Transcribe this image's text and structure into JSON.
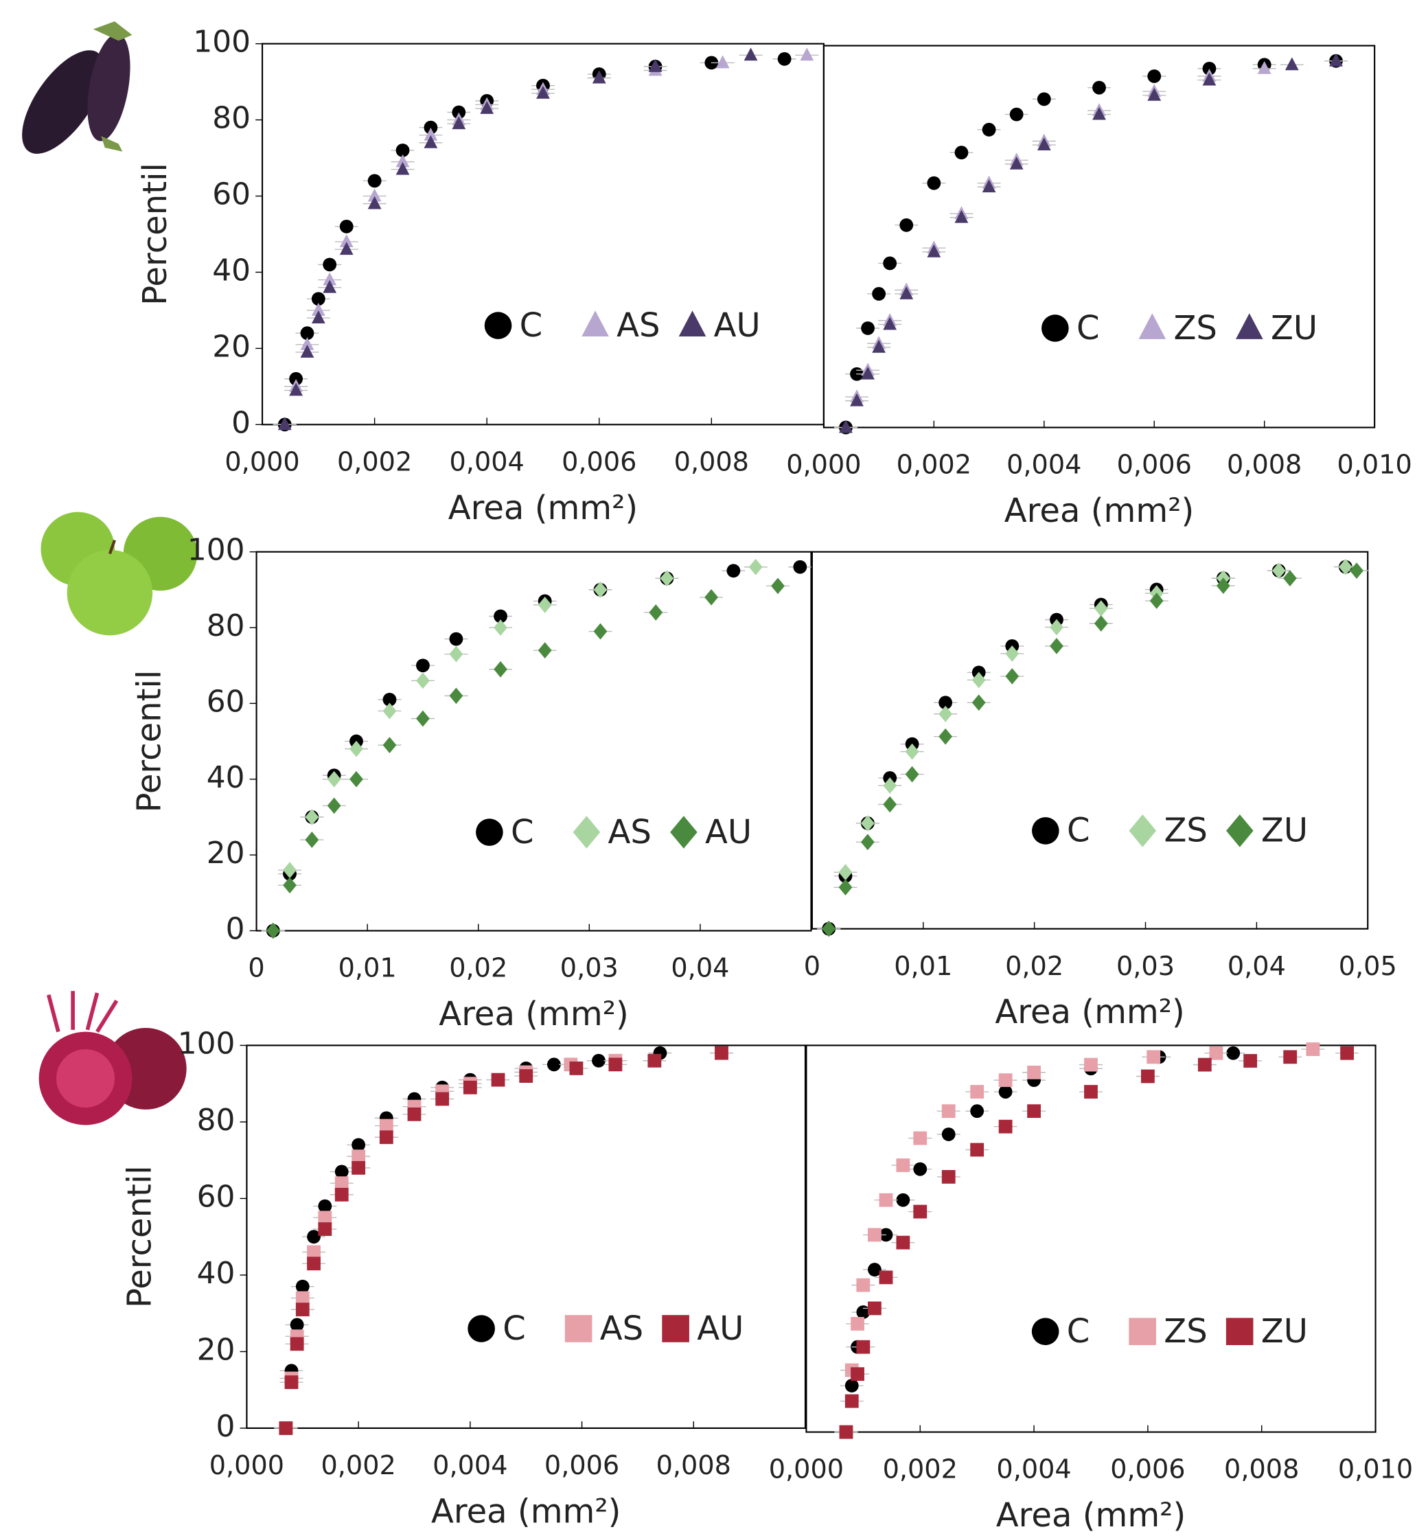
{
  "chart_data": [
    {
      "type": "scatter",
      "x_label": "Area (mm²)",
      "y_label": "Percentil",
      "xlim": [
        0,
        0.01
      ],
      "ylim": [
        0,
        100
      ],
      "xticks": [
        {
          "value": 0,
          "label": "0,000"
        },
        {
          "value": 0.002,
          "label": "0,002"
        },
        {
          "value": 0.004,
          "label": "0,004"
        },
        {
          "value": 0.006,
          "label": "0,006"
        },
        {
          "value": 0.008,
          "label": "0,008"
        }
      ],
      "yticks": [
        0,
        20,
        40,
        60,
        80,
        100
      ],
      "series": [
        {
          "name": "C",
          "color": "#000000",
          "marker": "circle",
          "x": [
            0.0004,
            0.0006,
            0.0008,
            0.001,
            0.0012,
            0.0015,
            0.002,
            0.0025,
            0.003,
            0.0035,
            0.004,
            0.005,
            0.006,
            0.007,
            0.008,
            0.0093
          ],
          "values": [
            0,
            12,
            24,
            33,
            42,
            52,
            64,
            72,
            78,
            82,
            85,
            89,
            92,
            94,
            95,
            96
          ]
        },
        {
          "name": "AS",
          "color": "#b7a6d0",
          "marker": "triangle",
          "x": [
            0.0004,
            0.0006,
            0.0008,
            0.001,
            0.0012,
            0.0015,
            0.002,
            0.0025,
            0.003,
            0.0035,
            0.004,
            0.005,
            0.006,
            0.007,
            0.0082,
            0.0097
          ],
          "values": [
            0,
            10,
            21,
            30,
            38,
            48,
            60,
            69,
            76,
            80,
            84,
            88,
            91,
            93,
            95,
            97
          ]
        },
        {
          "name": "AU",
          "color": "#4a3a6a",
          "marker": "triangle",
          "x": [
            0.0004,
            0.0006,
            0.0008,
            0.001,
            0.0012,
            0.0015,
            0.002,
            0.0025,
            0.003,
            0.0035,
            0.004,
            0.005,
            0.006,
            0.007,
            0.0087
          ],
          "values": [
            0,
            9,
            19,
            28,
            36,
            46,
            58,
            67,
            74,
            79,
            83,
            87,
            91,
            94,
            97
          ]
        }
      ]
    },
    {
      "type": "scatter",
      "x_label": "Area (mm²)",
      "xlim": [
        0,
        0.01
      ],
      "ylim": [
        0,
        100
      ],
      "xticks": [
        {
          "value": 0,
          "label": "0,000"
        },
        {
          "value": 0.002,
          "label": "0,002"
        },
        {
          "value": 0.004,
          "label": "0,004"
        },
        {
          "value": 0.006,
          "label": "0,006"
        },
        {
          "value": 0.008,
          "label": "0,008"
        },
        {
          "value": 0.01,
          "label": "0,010"
        }
      ],
      "series": [
        {
          "name": "C",
          "color": "#000000",
          "marker": "circle",
          "x": [
            0.0004,
            0.0006,
            0.0008,
            0.001,
            0.0012,
            0.0015,
            0.002,
            0.0025,
            0.003,
            0.0035,
            0.004,
            0.005,
            0.006,
            0.007,
            0.008,
            0.0093
          ],
          "values": [
            0,
            14,
            26,
            35,
            43,
            53,
            64,
            72,
            78,
            82,
            86,
            89,
            92,
            94,
            95,
            96
          ]
        },
        {
          "name": "ZS",
          "color": "#b7a6d0",
          "marker": "triangle",
          "x": [
            0.0004,
            0.0006,
            0.0008,
            0.001,
            0.0012,
            0.0015,
            0.002,
            0.0025,
            0.003,
            0.0035,
            0.004,
            0.005,
            0.006,
            0.007,
            0.008,
            0.0093
          ],
          "values": [
            0,
            8,
            15,
            22,
            28,
            36,
            47,
            56,
            64,
            70,
            75,
            83,
            88,
            92,
            94,
            96
          ]
        },
        {
          "name": "ZU",
          "color": "#4a3a6a",
          "marker": "triangle",
          "x": [
            0.0004,
            0.0006,
            0.0008,
            0.001,
            0.0012,
            0.0015,
            0.002,
            0.0025,
            0.003,
            0.0035,
            0.004,
            0.005,
            0.006,
            0.007,
            0.0085,
            0.0093
          ],
          "values": [
            0,
            7,
            14,
            21,
            27,
            35,
            46,
            55,
            63,
            69,
            74,
            82,
            87,
            91,
            95,
            96
          ]
        }
      ]
    },
    {
      "type": "scatter",
      "x_label": "Area (mm²)",
      "y_label": "Percentil",
      "xlim": [
        0,
        0.05
      ],
      "ylim": [
        0,
        100
      ],
      "xticks": [
        0,
        {
          "value": 0.01,
          "label": "0,01"
        },
        {
          "value": 0.02,
          "label": "0,02"
        },
        {
          "value": 0.03,
          "label": "0,03"
        },
        {
          "value": 0.04,
          "label": "0,04"
        }
      ],
      "yticks": [
        0,
        20,
        40,
        60,
        80,
        100
      ],
      "series": [
        {
          "name": "C",
          "color": "#000000",
          "marker": "circle",
          "x": [
            0.0015,
            0.003,
            0.005,
            0.007,
            0.009,
            0.012,
            0.015,
            0.018,
            0.022,
            0.026,
            0.031,
            0.037,
            0.043,
            0.049
          ],
          "values": [
            0,
            15,
            30,
            41,
            50,
            61,
            70,
            77,
            83,
            87,
            90,
            93,
            95,
            96
          ]
        },
        {
          "name": "AS",
          "color": "#a8d5a0",
          "marker": "diamond",
          "x": [
            0.0015,
            0.003,
            0.005,
            0.007,
            0.009,
            0.012,
            0.015,
            0.018,
            0.022,
            0.026,
            0.031,
            0.037,
            0.045
          ],
          "values": [
            0,
            16,
            30,
            40,
            48,
            58,
            66,
            73,
            80,
            86,
            90,
            93,
            96
          ]
        },
        {
          "name": "AU",
          "color": "#4a8a3e",
          "marker": "diamond",
          "x": [
            0.0015,
            0.003,
            0.005,
            0.007,
            0.009,
            0.012,
            0.015,
            0.018,
            0.022,
            0.026,
            0.031,
            0.036,
            0.041,
            0.047
          ],
          "values": [
            0,
            12,
            24,
            33,
            40,
            49,
            56,
            62,
            69,
            74,
            79,
            84,
            88,
            91
          ]
        }
      ]
    },
    {
      "type": "scatter",
      "x_label": "Area (mm²)",
      "xlim": [
        0,
        0.05
      ],
      "ylim": [
        0,
        100
      ],
      "xticks": [
        0,
        {
          "value": 0.01,
          "label": "0,01"
        },
        {
          "value": 0.02,
          "label": "0,02"
        },
        {
          "value": 0.03,
          "label": "0,03"
        },
        {
          "value": 0.04,
          "label": "0,04"
        },
        {
          "value": 0.05,
          "label": "0,05"
        }
      ],
      "series": [
        {
          "name": "C",
          "color": "#000000",
          "marker": "circle",
          "x": [
            0.0015,
            0.003,
            0.005,
            0.007,
            0.009,
            0.012,
            0.015,
            0.018,
            0.022,
            0.026,
            0.031,
            0.037,
            0.042,
            0.048
          ],
          "values": [
            0,
            14,
            28,
            40,
            49,
            60,
            68,
            75,
            82,
            86,
            90,
            93,
            95,
            96
          ]
        },
        {
          "name": "ZS",
          "color": "#a8d5a0",
          "marker": "diamond",
          "x": [
            0.0015,
            0.003,
            0.005,
            0.007,
            0.009,
            0.012,
            0.015,
            0.018,
            0.022,
            0.026,
            0.031,
            0.037,
            0.042,
            0.048
          ],
          "values": [
            0,
            15,
            28,
            38,
            47,
            57,
            66,
            73,
            80,
            85,
            89,
            93,
            95,
            96
          ]
        },
        {
          "name": "ZU",
          "color": "#4a8a3e",
          "marker": "diamond",
          "x": [
            0.0015,
            0.003,
            0.005,
            0.007,
            0.009,
            0.012,
            0.015,
            0.018,
            0.022,
            0.026,
            0.031,
            0.037,
            0.043,
            0.049
          ],
          "values": [
            0,
            11,
            23,
            33,
            41,
            51,
            60,
            67,
            75,
            81,
            87,
            91,
            93,
            95
          ]
        }
      ]
    },
    {
      "type": "scatter",
      "x_label": "Area (mm²)",
      "y_label": "Percentil",
      "xlim": [
        0,
        0.01
      ],
      "ylim": [
        0,
        100
      ],
      "xticks": [
        {
          "value": 0,
          "label": "0,000"
        },
        {
          "value": 0.002,
          "label": "0,002"
        },
        {
          "value": 0.004,
          "label": "0,004"
        },
        {
          "value": 0.006,
          "label": "0,006"
        },
        {
          "value": 0.008,
          "label": "0,008"
        }
      ],
      "yticks": [
        0,
        20,
        40,
        60,
        80,
        100
      ],
      "series": [
        {
          "name": "C",
          "color": "#000000",
          "marker": "circle",
          "x": [
            0.0007,
            0.0008,
            0.0009,
            0.001,
            0.0012,
            0.0014,
            0.0017,
            0.002,
            0.0025,
            0.003,
            0.0035,
            0.004,
            0.005,
            0.0055,
            0.0063,
            0.0074
          ],
          "values": [
            0,
            15,
            27,
            37,
            50,
            58,
            67,
            74,
            81,
            86,
            89,
            91,
            94,
            95,
            96,
            98
          ]
        },
        {
          "name": "AS",
          "color": "#e8a0a8",
          "marker": "square",
          "x": [
            0.0007,
            0.0008,
            0.0009,
            0.001,
            0.0012,
            0.0014,
            0.0017,
            0.002,
            0.0025,
            0.003,
            0.0035,
            0.004,
            0.005,
            0.0058,
            0.0066,
            0.0085
          ],
          "values": [
            0,
            13,
            24,
            34,
            46,
            55,
            64,
            71,
            79,
            84,
            88,
            90,
            93,
            95,
            96,
            98
          ]
        },
        {
          "name": "AU",
          "color": "#a8283a",
          "marker": "square",
          "x": [
            0.0007,
            0.0008,
            0.0009,
            0.001,
            0.0012,
            0.0014,
            0.0017,
            0.002,
            0.0025,
            0.003,
            0.0035,
            0.004,
            0.0045,
            0.005,
            0.0059,
            0.0066,
            0.0073,
            0.0085
          ],
          "values": [
            0,
            12,
            22,
            31,
            43,
            52,
            61,
            68,
            76,
            82,
            86,
            89,
            91,
            92,
            94,
            95,
            96,
            98
          ]
        }
      ]
    },
    {
      "type": "scatter",
      "x_label": "Area (mm²)",
      "xlim": [
        0,
        0.01
      ],
      "ylim": [
        0,
        100
      ],
      "xticks": [
        {
          "value": 0,
          "label": "0,000"
        },
        {
          "value": 0.002,
          "label": "0,002"
        },
        {
          "value": 0.004,
          "label": "0,004"
        },
        {
          "value": 0.006,
          "label": "0,006"
        },
        {
          "value": 0.008,
          "label": "0,008"
        },
        {
          "value": 0.01,
          "label": "0,010"
        }
      ],
      "series": [
        {
          "name": "C",
          "color": "#000000",
          "marker": "circle",
          "x": [
            0.0007,
            0.0008,
            0.0009,
            0.001,
            0.0012,
            0.0014,
            0.0017,
            0.002,
            0.0025,
            0.003,
            0.0035,
            0.004,
            0.005,
            0.0062,
            0.0075
          ],
          "values": [
            0,
            12,
            22,
            31,
            42,
            51,
            60,
            68,
            77,
            83,
            88,
            91,
            94,
            97,
            98
          ]
        },
        {
          "name": "ZS",
          "color": "#e8a0a8",
          "marker": "square",
          "x": [
            0.0007,
            0.0008,
            0.0009,
            0.001,
            0.0012,
            0.0014,
            0.0017,
            0.002,
            0.0025,
            0.003,
            0.0035,
            0.004,
            0.005,
            0.0061,
            0.0072,
            0.0089
          ],
          "values": [
            0,
            16,
            28,
            38,
            51,
            60,
            69,
            76,
            83,
            88,
            91,
            93,
            95,
            97,
            98,
            99
          ]
        },
        {
          "name": "ZU",
          "color": "#a8283a",
          "marker": "square",
          "x": [
            0.0007,
            0.0008,
            0.0009,
            0.001,
            0.0012,
            0.0014,
            0.0017,
            0.002,
            0.0025,
            0.003,
            0.0035,
            0.004,
            0.005,
            0.006,
            0.007,
            0.0078,
            0.0085,
            0.0095
          ],
          "values": [
            0,
            8,
            15,
            22,
            32,
            40,
            49,
            57,
            66,
            73,
            79,
            83,
            88,
            92,
            95,
            96,
            97,
            98
          ]
        }
      ]
    }
  ]
}
